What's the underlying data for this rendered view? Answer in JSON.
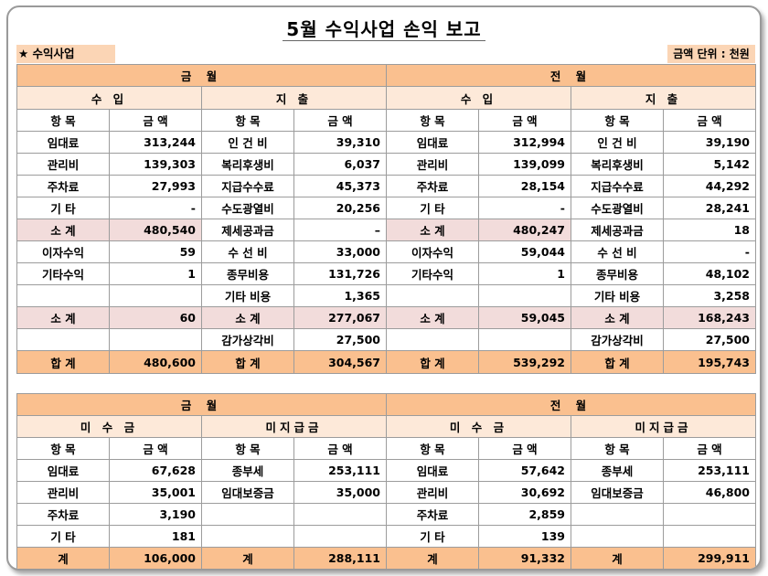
{
  "title": "5월  수익사업 손익 보고",
  "subhead": {
    "left": "★ 수익사업",
    "right": "금액 단위 : 천원"
  },
  "income": {
    "current": {
      "label": "금 월",
      "rev_label": "수 입",
      "exp_label": "지 출",
      "col_item": "항 목",
      "col_amount": "금 액",
      "rows": [
        {
          "r_item": "임대료",
          "r_amt": "313,244",
          "e_item": "인 건 비",
          "e_amt": "39,310"
        },
        {
          "r_item": "관리비",
          "r_amt": "139,303",
          "e_item": "복리후생비",
          "e_amt": "6,037"
        },
        {
          "r_item": "주차료",
          "r_amt": "27,993",
          "e_item": "지급수수료",
          "e_amt": "45,373"
        },
        {
          "r_item": "기 타",
          "r_amt": "-",
          "e_item": "수도광열비",
          "e_amt": "20,256"
        },
        {
          "r_item": "소 계",
          "r_amt": "480,540",
          "e_item": "제세공과금",
          "e_amt": "–"
        },
        {
          "r_item": "이자수익",
          "r_amt": "59",
          "e_item": "수 선 비",
          "e_amt": "33,000"
        },
        {
          "r_item": "기타수익",
          "r_amt": "1",
          "e_item": "종무비용",
          "e_amt": "131,726"
        },
        {
          "r_item": "",
          "r_amt": "",
          "e_item": "기타 비용",
          "e_amt": "1,365"
        },
        {
          "r_item": "소 계",
          "r_amt": "60",
          "e_item": "소 계",
          "e_amt": "277,067"
        },
        {
          "r_item": "",
          "r_amt": "",
          "e_item": "감가상각비",
          "e_amt": "27,500"
        },
        {
          "r_item": "합 계",
          "r_amt": "480,600",
          "e_item": "합 계",
          "e_amt": "304,567"
        }
      ]
    },
    "previous": {
      "label": "전 월",
      "rev_label": "수 입",
      "exp_label": "지 출",
      "col_item": "항 목",
      "col_amount": "금 액",
      "rows": [
        {
          "r_item": "임대료",
          "r_amt": "312,994",
          "e_item": "인 건 비",
          "e_amt": "39,190"
        },
        {
          "r_item": "관리비",
          "r_amt": "139,099",
          "e_item": "복리후생비",
          "e_amt": "5,142"
        },
        {
          "r_item": "주차료",
          "r_amt": "28,154",
          "e_item": "지급수수료",
          "e_amt": "44,292"
        },
        {
          "r_item": "기 타",
          "r_amt": "-",
          "e_item": "수도광열비",
          "e_amt": "28,241"
        },
        {
          "r_item": "소 계",
          "r_amt": "480,247",
          "e_item": "제세공과금",
          "e_amt": "18"
        },
        {
          "r_item": "이자수익",
          "r_amt": "59,044",
          "e_item": "수 선 비",
          "e_amt": "-"
        },
        {
          "r_item": "기타수익",
          "r_amt": "1",
          "e_item": "종무비용",
          "e_amt": "48,102"
        },
        {
          "r_item": "",
          "r_amt": "",
          "e_item": "기타 비용",
          "e_amt": "3,258"
        },
        {
          "r_item": "소 계",
          "r_amt": "59,045",
          "e_item": "소 계",
          "e_amt": "168,243"
        },
        {
          "r_item": "",
          "r_amt": "",
          "e_item": "감가상각비",
          "e_amt": "27,500"
        },
        {
          "r_item": "합 계",
          "r_amt": "539,292",
          "e_item": "합 계",
          "e_amt": "195,743"
        }
      ]
    }
  },
  "balances": {
    "current": {
      "label": "금 월",
      "recv_label": "미 수 금",
      "pay_label": "미지급금",
      "col_item": "항 목",
      "col_amount": "금 액",
      "rows": [
        {
          "r_item": "임대료",
          "r_amt": "67,628",
          "p_item": "종부세",
          "p_amt": "253,111"
        },
        {
          "r_item": "관리비",
          "r_amt": "35,001",
          "p_item": "임대보증금",
          "p_amt": "35,000"
        },
        {
          "r_item": "주차료",
          "r_amt": "3,190",
          "p_item": "",
          "p_amt": ""
        },
        {
          "r_item": "기 타",
          "r_amt": "181",
          "p_item": "",
          "p_amt": ""
        },
        {
          "r_item": "계",
          "r_amt": "106,000",
          "p_item": "계",
          "p_amt": "288,111"
        }
      ]
    },
    "previous": {
      "label": "전 월",
      "recv_label": "미 수 금",
      "pay_label": "미지급금",
      "col_item": "항 목",
      "col_amount": "금 액",
      "rows": [
        {
          "r_item": "임대료",
          "r_amt": "57,642",
          "p_item": "종부세",
          "p_amt": "253,111"
        },
        {
          "r_item": "관리비",
          "r_amt": "30,692",
          "p_item": "임대보증금",
          "p_amt": "46,800"
        },
        {
          "r_item": "주차료",
          "r_amt": "2,859",
          "p_item": "",
          "p_amt": ""
        },
        {
          "r_item": "기 타",
          "r_amt": "139",
          "p_item": "",
          "p_amt": ""
        },
        {
          "r_item": "계",
          "r_amt": "91,332",
          "p_item": "계",
          "p_amt": "299,911"
        }
      ]
    }
  }
}
